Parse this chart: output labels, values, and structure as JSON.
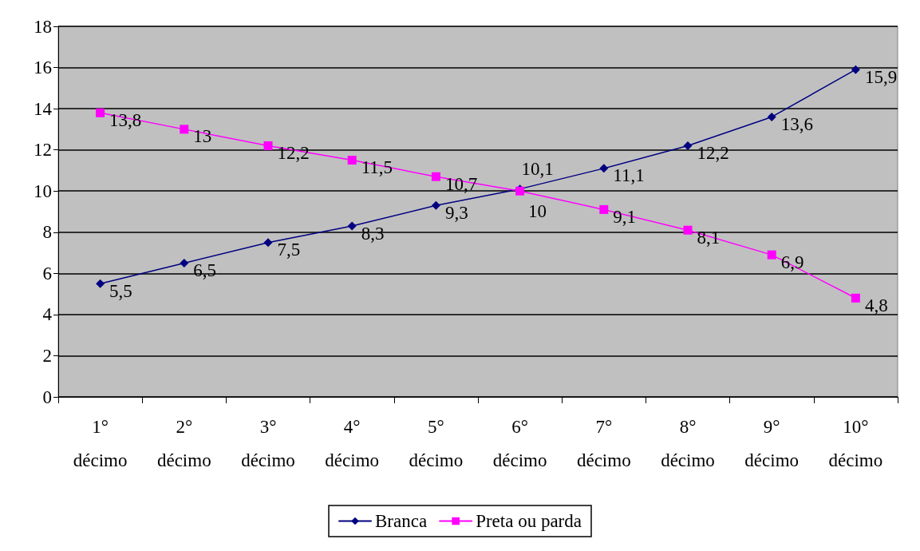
{
  "chart_data": {
    "type": "line",
    "categories": [
      "1° décimo",
      "2° décimo",
      "3° décimo",
      "4° décimo",
      "5° décimo",
      "6° décimo",
      "7° décimo",
      "8° décimo",
      "9° décimo",
      "10° décimo"
    ],
    "series": [
      {
        "name": "Branca",
        "color": "#000080",
        "marker": "diamond",
        "values": [
          5.5,
          6.5,
          7.5,
          8.3,
          9.3,
          10.1,
          11.1,
          12.2,
          13.6,
          15.9
        ],
        "value_labels": [
          "5,5",
          "6,5",
          "7,5",
          "8,3",
          "9,3",
          "10,1",
          "11,1",
          "12,2",
          "13,6",
          "15,9"
        ]
      },
      {
        "name": "Preta ou parda",
        "color": "#ff00ff",
        "marker": "square",
        "values": [
          13.8,
          13,
          12.2,
          11.5,
          10.7,
          10,
          9.1,
          8.1,
          6.9,
          4.8
        ],
        "value_labels": [
          "13,8",
          "13",
          "12,2",
          "11,5",
          "10,7",
          "10",
          "9,1",
          "8,1",
          "6,9",
          "4,8"
        ]
      }
    ],
    "ylim": [
      0,
      18
    ],
    "yticks": [
      0,
      2,
      4,
      6,
      8,
      10,
      12,
      14,
      16,
      18
    ],
    "grid": "y",
    "legend": "bottom"
  }
}
